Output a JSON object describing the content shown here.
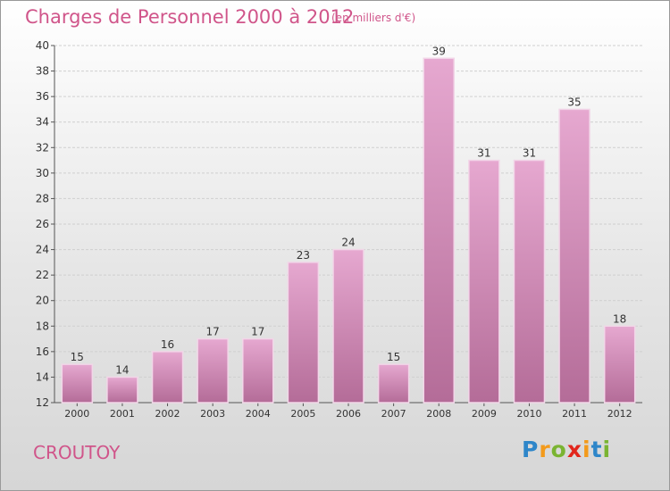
{
  "header": {
    "title": "Charges de Personnel 2000 à 2012",
    "subtitle": "(en milliers d'€)"
  },
  "footer": {
    "commune": "CROUTOY",
    "logo": {
      "letters": [
        "P",
        "r",
        "o",
        "x",
        "i",
        "t",
        "i"
      ],
      "colors": [
        "#2e86c9",
        "#f39a1b",
        "#7ab432",
        "#e2261c",
        "#f39a1b",
        "#2e86c9",
        "#7ab432"
      ]
    }
  },
  "colors": {
    "bar_top": "#e6a8d0",
    "bar_bottom": "#b46c98",
    "title": "#d0558a"
  },
  "chart_data": {
    "type": "bar",
    "categories": [
      "2000",
      "2001",
      "2002",
      "2003",
      "2004",
      "2005",
      "2006",
      "2007",
      "2008",
      "2009",
      "2010",
      "2011",
      "2012"
    ],
    "values": [
      15,
      14,
      16,
      17,
      17,
      23,
      24,
      15,
      39,
      31,
      31,
      35,
      18
    ],
    "title": "Charges de Personnel 2000 à 2012",
    "subtitle": "(en milliers d'€)",
    "xlabel": "",
    "ylabel": "",
    "ylim": [
      12,
      40
    ],
    "yticks": [
      12,
      14,
      16,
      18,
      20,
      22,
      24,
      26,
      28,
      30,
      32,
      34,
      36,
      38,
      40
    ],
    "grid": true,
    "data_labels": true
  }
}
